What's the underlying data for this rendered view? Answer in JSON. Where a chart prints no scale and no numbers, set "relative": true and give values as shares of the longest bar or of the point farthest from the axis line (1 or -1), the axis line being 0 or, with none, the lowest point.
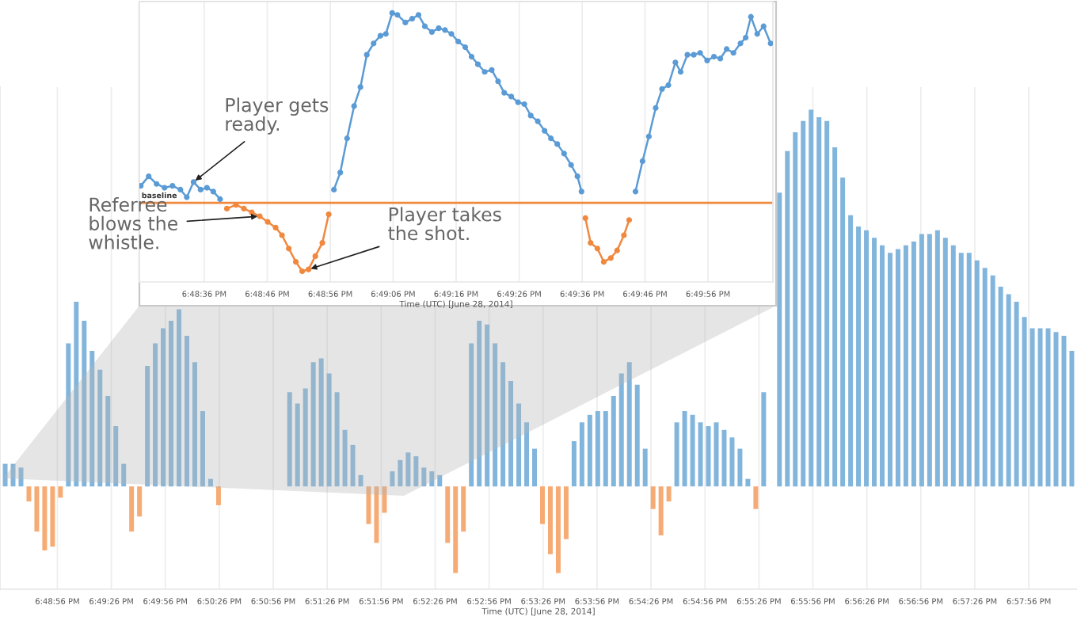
{
  "chart_data": [
    {
      "type": "bar",
      "xlabel": "Time (UTC) [June 28, 2014]",
      "relative": true,
      "grid": true,
      "tick_labels": "x",
      "x": [
        18.8075,
        18.80872,
        18.80994,
        18.81116,
        18.81238,
        18.8136,
        18.81482,
        18.81604,
        18.81726,
        18.81848,
        18.8197,
        18.82092,
        18.82214,
        18.82336,
        18.82458,
        18.8258,
        18.82702,
        18.82824,
        18.82946,
        18.83068,
        18.8319,
        18.83312,
        18.83434,
        18.83556,
        18.83678,
        18.838,
        18.83922,
        18.84044,
        18.84166,
        18.84288,
        18.8441,
        18.84532,
        18.84654,
        18.84776,
        18.84898,
        18.8502,
        18.85142,
        18.85264,
        18.85386,
        18.85508,
        18.8563,
        18.85752,
        18.85874,
        18.85996,
        18.86118,
        18.8624,
        18.86362,
        18.86484,
        18.86606,
        18.86728,
        18.8685,
        18.86972,
        18.87094,
        18.87216,
        18.87338,
        18.8746,
        18.87582,
        18.87704,
        18.87826,
        18.87948,
        18.8807,
        18.88192,
        18.88314,
        18.88436,
        18.88558,
        18.8868,
        18.88802,
        18.88924,
        18.89046,
        18.89168,
        18.8929,
        18.89412,
        18.89534,
        18.89656,
        18.89778,
        18.899,
        18.90022,
        18.90144,
        18.90266,
        18.90388,
        18.9051,
        18.90632,
        18.90754,
        18.90876,
        18.90998,
        18.9112,
        18.91242,
        18.91364,
        18.91486,
        18.91608,
        18.9173,
        18.91852,
        18.91974,
        18.92096,
        18.92218,
        18.9234,
        18.92462,
        18.92584,
        18.92706,
        18.92828,
        18.9295,
        18.93072,
        18.93194,
        18.93316,
        18.93438,
        18.9356,
        18.93682,
        18.93804,
        18.93926,
        18.94048,
        18.9417,
        18.94292,
        18.94414,
        18.94536,
        18.94658,
        18.9478,
        18.94902,
        18.95024,
        18.95146,
        18.95268,
        18.9539,
        18.95512,
        18.95634,
        18.95756,
        18.95878,
        18.96,
        18.96122,
        18.96244,
        18.96366,
        18.96488,
        18.9661,
        18.96732,
        18.96854,
        18.96976,
        18.97098,
        18.9722
      ],
      "xlim": [
        18.8067,
        18.973
      ],
      "xticks": [
        {
          "value": 18.81556,
          "label": "6:48:56 PM"
        },
        {
          "value": 18.82389,
          "label": "6:49:26 PM"
        },
        {
          "value": 18.83222,
          "label": "6:49:56 PM"
        },
        {
          "value": 18.84056,
          "label": "6:50:26 PM"
        },
        {
          "value": 18.84889,
          "label": "6:50:56 PM"
        },
        {
          "value": 18.85722,
          "label": "6:51:26 PM"
        },
        {
          "value": 18.86556,
          "label": "6:51:56 PM"
        },
        {
          "value": 18.87389,
          "label": "6:52:26 PM"
        },
        {
          "value": 18.88222,
          "label": "6:52:56 PM"
        },
        {
          "value": 18.89056,
          "label": "6:53:26 PM"
        },
        {
          "value": 18.89889,
          "label": "6:53:56 PM"
        },
        {
          "value": 18.90722,
          "label": "6:54:26 PM"
        },
        {
          "value": 18.91556,
          "label": "6:54:56 PM"
        },
        {
          "value": 18.92389,
          "label": "6:55:26 PM"
        },
        {
          "value": 18.93222,
          "label": "6:55:56 PM"
        },
        {
          "value": 18.94056,
          "label": "6:56:26 PM"
        },
        {
          "value": 18.94889,
          "label": "6:56:56 PM"
        },
        {
          "value": 18.95722,
          "label": "6:57:26 PM"
        },
        {
          "value": 18.96556,
          "label": "6:57:56 PM"
        }
      ],
      "series": [
        {
          "color": "#82b5dc",
          "values": [
            0.06,
            0.06,
            0.05,
            null,
            null,
            null,
            null,
            null,
            0.38,
            0.49,
            0.44,
            0.36,
            0.31,
            0.24,
            0.16,
            0.06,
            null,
            null,
            0.32,
            0.38,
            0.42,
            0.44,
            0.47,
            0.4,
            0.33,
            0.2,
            0.02,
            null,
            null,
            null,
            null,
            null,
            null,
            null,
            null,
            null,
            0.25,
            0.22,
            0.26,
            0.33,
            0.34,
            0.3,
            0.25,
            0.15,
            0.11,
            0.03,
            null,
            null,
            null,
            0.04,
            0.07,
            0.09,
            0.08,
            0.05,
            0.04,
            0.03,
            null,
            null,
            null,
            0.38,
            0.44,
            0.43,
            0.38,
            0.33,
            0.28,
            0.22,
            0.17,
            0.1,
            null,
            null,
            null,
            null,
            0.12,
            0.17,
            0.19,
            0.2,
            0.2,
            0.24,
            0.3,
            0.33,
            0.27,
            0.1,
            null,
            null,
            null,
            0.17,
            0.2,
            0.19,
            0.17,
            0.16,
            0.17,
            0.15,
            0.13,
            0.1,
            0.02,
            null,
            0.25,
            null,
            0.78,
            0.89,
            0.94,
            0.97,
            1.0,
            0.98,
            0.97,
            0.9,
            0.82,
            0.72,
            0.69,
            0.68,
            0.66,
            0.64,
            0.62,
            0.63,
            0.64,
            0.65,
            0.67,
            0.67,
            0.68,
            0.66,
            0.64,
            0.62,
            0.62,
            0.6,
            0.58,
            0.56,
            0.53,
            0.51,
            0.49,
            0.45,
            0.42,
            0.42,
            0.42,
            0.41,
            0.4,
            0.36
          ]
        },
        {
          "color": "#f6ab74",
          "values": [
            null,
            null,
            null,
            -0.04,
            -0.12,
            -0.17,
            -0.16,
            -0.03,
            null,
            null,
            null,
            null,
            null,
            null,
            null,
            null,
            -0.12,
            -0.08,
            null,
            null,
            null,
            null,
            null,
            null,
            null,
            null,
            null,
            -0.05,
            null,
            null,
            null,
            null,
            null,
            null,
            null,
            null,
            null,
            null,
            null,
            null,
            null,
            null,
            null,
            null,
            null,
            null,
            -0.1,
            -0.15,
            -0.07,
            null,
            null,
            null,
            null,
            null,
            null,
            null,
            -0.15,
            -0.23,
            -0.12,
            null,
            null,
            null,
            null,
            null,
            null,
            null,
            null,
            null,
            -0.1,
            -0.18,
            -0.23,
            -0.14,
            null,
            null,
            null,
            null,
            null,
            null,
            null,
            null,
            null,
            null,
            -0.06,
            -0.13,
            -0.04,
            null,
            null,
            null,
            null,
            null,
            null,
            null,
            null,
            null,
            null,
            -0.06,
            null,
            null,
            null,
            null,
            null,
            null,
            null,
            null,
            null,
            null,
            null,
            null,
            null,
            null,
            null,
            null,
            null,
            null,
            null,
            null,
            null,
            null,
            null,
            null,
            null,
            null,
            null,
            null,
            null,
            null,
            null,
            null,
            null,
            null,
            null,
            null,
            null,
            null,
            null,
            null
          ]
        }
      ]
    },
    {
      "type": "line",
      "xlabel": "Time (UTC) [June 28, 2014]",
      "relative": true,
      "grid": true,
      "tick_labels": "x",
      "marker": "circle",
      "x": [
        18.8072,
        18.80755,
        18.8079,
        18.80825,
        18.8086,
        18.80895,
        18.80923,
        18.80953,
        18.80984,
        18.81012,
        18.8104,
        18.8107,
        18.811,
        18.8114,
        18.81175,
        18.8121,
        18.81245,
        18.8128,
        18.81315,
        18.81343,
        18.81373,
        18.81404,
        18.81432,
        18.8146,
        18.8149,
        18.81521,
        18.81549,
        18.81572,
        18.816,
        18.8163,
        18.81661,
        18.81689,
        18.81717,
        18.81747,
        18.81777,
        18.81801,
        18.81829,
        18.81852,
        18.81887,
        18.81917,
        18.81945,
        18.81973,
        18.82004,
        18.82034,
        18.82062,
        18.8209,
        18.8212,
        18.82151,
        18.82179,
        18.82207,
        18.82237,
        18.82268,
        18.82296,
        18.82323,
        18.82354,
        18.82384,
        18.82412,
        18.8244,
        18.82471,
        18.82501,
        18.82529,
        18.82557,
        18.82587,
        18.82618,
        18.82646,
        18.82664,
        18.82681,
        18.82704,
        18.82734,
        18.82762,
        18.82793,
        18.82821,
        18.82851,
        18.82874,
        18.82902,
        18.82933,
        18.82961,
        18.82991,
        18.83019,
        18.83047,
        18.83078,
        18.83101,
        18.83131,
        18.83159,
        18.83187,
        18.83218,
        18.83248,
        18.83276,
        18.83304,
        18.83334,
        18.83365,
        18.83388,
        18.83411,
        18.83439,
        18.83467,
        18.83498
      ],
      "xlim": [
        18.80714,
        18.83508
      ],
      "xticks": [
        {
          "value": 18.81,
          "label": "6:48:36 PM"
        },
        {
          "value": 18.81278,
          "label": "6:48:46 PM"
        },
        {
          "value": 18.81556,
          "label": "6:48:56 PM"
        },
        {
          "value": 18.81833,
          "label": "6:49:06 PM"
        },
        {
          "value": 18.82111,
          "label": "6:49:16 PM"
        },
        {
          "value": 18.82389,
          "label": "6:49:26 PM"
        },
        {
          "value": 18.82667,
          "label": "6:49:36 PM"
        },
        {
          "value": 18.82944,
          "label": "6:49:46 PM"
        },
        {
          "value": 18.83222,
          "label": "6:49:56 PM"
        }
      ],
      "series": [
        {
          "color": "#5b9bd5",
          "values": [
            0.09,
            0.14,
            0.1,
            0.08,
            0.09,
            0.07,
            0.03,
            0.11,
            0.07,
            0.08,
            0.06,
            0.02,
            null,
            null,
            null,
            null,
            null,
            null,
            null,
            null,
            null,
            null,
            null,
            null,
            null,
            null,
            null,
            0.07,
            0.16,
            0.34,
            0.51,
            0.61,
            0.78,
            0.84,
            0.88,
            0.89,
            1.0,
            0.99,
            0.95,
            0.97,
            0.99,
            0.93,
            0.9,
            0.92,
            0.91,
            0.89,
            0.85,
            0.82,
            0.77,
            0.73,
            0.69,
            0.7,
            0.64,
            0.58,
            0.56,
            0.53,
            0.52,
            0.46,
            0.43,
            0.38,
            0.34,
            0.31,
            0.26,
            0.2,
            0.14,
            0.06,
            null,
            null,
            null,
            null,
            null,
            null,
            null,
            null,
            0.06,
            0.22,
            0.35,
            0.5,
            0.6,
            0.62,
            0.74,
            0.69,
            0.78,
            0.78,
            0.79,
            0.75,
            0.77,
            0.76,
            0.81,
            0.79,
            0.84,
            0.87,
            0.98,
            0.89,
            0.93,
            0.84
          ]
        },
        {
          "color": "#f0883e",
          "values": [
            null,
            null,
            null,
            null,
            null,
            null,
            null,
            null,
            null,
            null,
            null,
            null,
            -0.03,
            -0.01,
            -0.03,
            -0.05,
            -0.07,
            -0.1,
            -0.13,
            -0.17,
            -0.24,
            -0.31,
            -0.36,
            -0.35,
            -0.28,
            -0.21,
            -0.06,
            null,
            null,
            null,
            null,
            null,
            null,
            null,
            null,
            null,
            null,
            null,
            null,
            null,
            null,
            null,
            null,
            null,
            null,
            null,
            null,
            null,
            null,
            null,
            null,
            null,
            null,
            null,
            null,
            null,
            null,
            null,
            null,
            null,
            null,
            null,
            null,
            null,
            null,
            null,
            -0.08,
            -0.21,
            -0.24,
            -0.31,
            -0.29,
            -0.25,
            -0.17,
            -0.09,
            null,
            null,
            null,
            null,
            null,
            null,
            null,
            null,
            null,
            null,
            null,
            null,
            null,
            null,
            null,
            null,
            null,
            null,
            null,
            null,
            null,
            null
          ]
        }
      ],
      "ref_lines": [
        {
          "axis": "y",
          "value": 0,
          "label": "baseline",
          "color": "#f0883e"
        }
      ],
      "annotations": [
        {
          "text": "Player gets\nready.",
          "x": 18.80953,
          "y": 0.11
        },
        {
          "text": "Referree\nblows the\nwhistle.",
          "x": 18.81245,
          "y": -0.07
        },
        {
          "text": "Player takes\nthe shot.",
          "x": 18.8146,
          "y": -0.35
        }
      ]
    }
  ]
}
